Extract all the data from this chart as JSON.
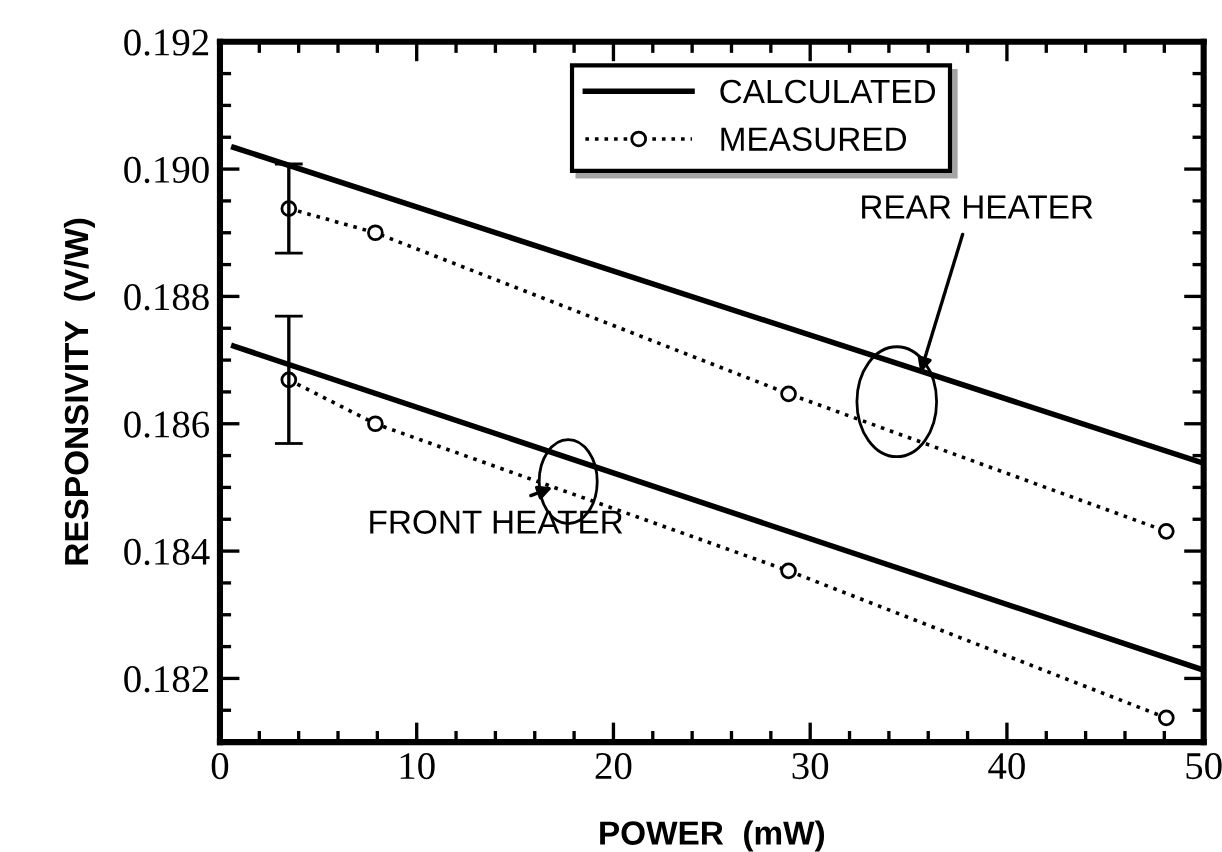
{
  "chart_data": {
    "type": "line",
    "xlabel": "POWER  (mW)",
    "ylabel": "RESPONSIVITY  (V/W)",
    "xlim": [
      0,
      50
    ],
    "xticks": [
      0,
      10,
      20,
      30,
      40,
      50
    ],
    "ylim": [
      0.181,
      0.192
    ],
    "yticks": [
      {
        "value": 0.182,
        "label": "0.182"
      },
      {
        "value": 0.184,
        "label": "0.184"
      },
      {
        "value": 0.186,
        "label": "0.186"
      },
      {
        "value": 0.188,
        "label": "0.188"
      },
      {
        "value": 0.19,
        "label": "0.190"
      },
      {
        "value": 0.192,
        "label": "0.192"
      }
    ],
    "grid": false,
    "legend": "top",
    "series": [
      {
        "name": "CALCULATED",
        "color": "#000000",
        "line_style": "solid",
        "marker": "none",
        "x": [
          0.7,
          50
        ],
        "values": [
          0.19034,
          0.18538
        ]
      },
      {
        "color": "#000000",
        "line_style": "solid",
        "marker": "none",
        "x": [
          0.7,
          50
        ],
        "values": [
          0.18722,
          0.18213
        ]
      },
      {
        "name": "MEASURED",
        "color": "#000000",
        "line_style": "dotted",
        "marker": "circle",
        "x": [
          3.5,
          7.9,
          28.9,
          48.1
        ],
        "values": [
          0.18938,
          0.189,
          0.18647,
          0.18431
        ],
        "errors": [
          0.0007,
          null,
          null,
          null
        ]
      },
      {
        "color": "#000000",
        "line_style": "dotted",
        "marker": "circle",
        "x": [
          3.5,
          7.9,
          28.9,
          48.1
        ],
        "values": [
          0.18669,
          0.186,
          0.18369,
          0.18138
        ],
        "errors": [
          0.001,
          null,
          null,
          null
        ]
      }
    ],
    "annotations": [
      {
        "text": "REAR HEATER",
        "x": 35.6,
        "y": 0.1868
      },
      {
        "text": "FRONT HEATER",
        "x": 16.9,
        "y": 0.185
      }
    ]
  }
}
